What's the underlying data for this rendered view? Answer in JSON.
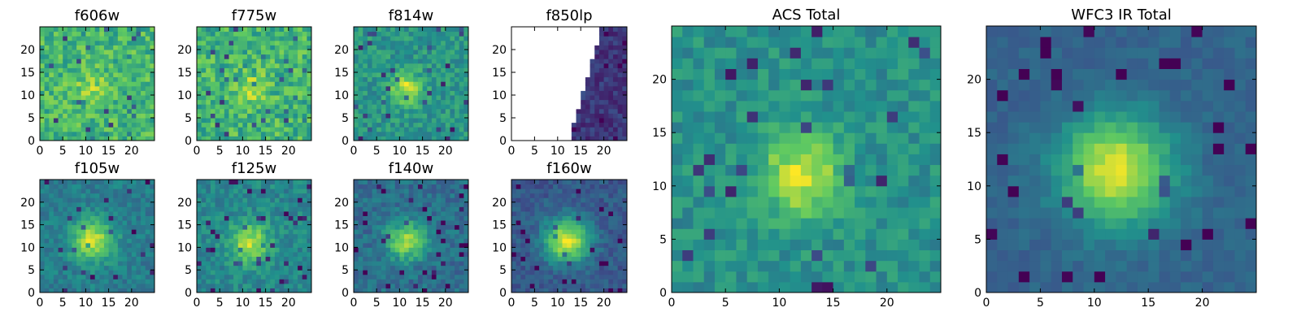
{
  "figure": {
    "description_free": true,
    "colormap": [
      "#440154",
      "#3b528b",
      "#21918c",
      "#5ec962",
      "#fde725"
    ],
    "missing_color": "#ffffff",
    "frame_color": "#000000"
  },
  "chart_data": [
    {
      "type": "heatmap",
      "title": "f606w",
      "grid_size": 25,
      "xlim": [
        0,
        25
      ],
      "ylim": [
        0,
        25
      ],
      "xticks": [
        0,
        5,
        10,
        15,
        20
      ],
      "yticks": [
        0,
        5,
        10,
        15,
        20
      ],
      "peak": {
        "x": 11.5,
        "y": 11.5
      },
      "peak_value": 0.82,
      "background_value": 0.66,
      "sigma": 2.6,
      "noise": 0.16,
      "seed": 11
    },
    {
      "type": "heatmap",
      "title": "f775w",
      "grid_size": 25,
      "xlim": [
        0,
        25
      ],
      "ylim": [
        0,
        25
      ],
      "xticks": [
        0,
        5,
        10,
        15,
        20
      ],
      "yticks": [
        0,
        5,
        10,
        15,
        20
      ],
      "peak": {
        "x": 11.5,
        "y": 11.5
      },
      "peak_value": 0.84,
      "background_value": 0.65,
      "sigma": 2.8,
      "noise": 0.17,
      "seed": 23
    },
    {
      "type": "heatmap",
      "title": "f814w",
      "grid_size": 25,
      "xlim": [
        0,
        25
      ],
      "ylim": [
        0,
        25
      ],
      "xticks": [
        0,
        5,
        10,
        15,
        20
      ],
      "yticks": [
        0,
        5,
        10,
        15,
        20
      ],
      "peak": {
        "x": 11.5,
        "y": 11.5
      },
      "peak_value": 0.92,
      "background_value": 0.52,
      "sigma": 2.4,
      "noise": 0.12,
      "seed": 37
    },
    {
      "type": "heatmap",
      "title": "f850lp",
      "grid_size": 25,
      "xlim": [
        0,
        25
      ],
      "ylim": [
        0,
        25
      ],
      "xticks": [
        0,
        5,
        10,
        15,
        20
      ],
      "yticks": [
        0,
        5,
        10,
        15,
        20
      ],
      "peak": {
        "x": 11.5,
        "y": 11.5
      },
      "peak_value": 0.3,
      "background_value": 0.16,
      "sigma": 2.5,
      "noise": 0.08,
      "seed": 41,
      "coverage_edge": {
        "x_at_bottom": 12.5,
        "x_at_top": 19.5
      }
    },
    {
      "type": "heatmap",
      "title": "f105w",
      "grid_size": 25,
      "xlim": [
        0,
        25
      ],
      "ylim": [
        0,
        25
      ],
      "xticks": [
        0,
        5,
        10,
        15,
        20
      ],
      "yticks": [
        0,
        5,
        10,
        15,
        20
      ],
      "peak": {
        "x": 11.5,
        "y": 11.5
      },
      "peak_value": 0.92,
      "background_value": 0.42,
      "sigma": 3.2,
      "noise": 0.09,
      "seed": 53
    },
    {
      "type": "heatmap",
      "title": "f125w",
      "grid_size": 25,
      "xlim": [
        0,
        25
      ],
      "ylim": [
        0,
        25
      ],
      "xticks": [
        0,
        5,
        10,
        15,
        20
      ],
      "yticks": [
        0,
        5,
        10,
        15,
        20
      ],
      "peak": {
        "x": 11.5,
        "y": 11.0
      },
      "peak_value": 0.9,
      "background_value": 0.46,
      "sigma": 3.0,
      "noise": 0.1,
      "seed": 67
    },
    {
      "type": "heatmap",
      "title": "f140w",
      "grid_size": 25,
      "xlim": [
        0,
        25
      ],
      "ylim": [
        0,
        25
      ],
      "xticks": [
        0,
        5,
        10,
        15,
        20
      ],
      "yticks": [
        0,
        5,
        10,
        15,
        20
      ],
      "peak": {
        "x": 11.5,
        "y": 11.5
      },
      "peak_value": 0.85,
      "background_value": 0.36,
      "sigma": 3.0,
      "noise": 0.1,
      "seed": 71
    },
    {
      "type": "heatmap",
      "title": "f160w",
      "grid_size": 25,
      "xlim": [
        0,
        25
      ],
      "ylim": [
        0,
        25
      ],
      "xticks": [
        0,
        5,
        10,
        15,
        20
      ],
      "yticks": [
        0,
        5,
        10,
        15,
        20
      ],
      "peak": {
        "x": 12.0,
        "y": 11.5
      },
      "peak_value": 0.95,
      "background_value": 0.28,
      "sigma": 3.4,
      "noise": 0.08,
      "seed": 83
    },
    {
      "type": "heatmap",
      "title": "ACS Total",
      "grid_size": 25,
      "xlim": [
        0,
        25
      ],
      "ylim": [
        0,
        25
      ],
      "xticks": [
        0,
        5,
        10,
        15,
        20
      ],
      "yticks": [
        0,
        5,
        10,
        15,
        20
      ],
      "peak": {
        "x": 12.0,
        "y": 11.0
      },
      "peak_value": 0.95,
      "background_value": 0.5,
      "sigma": 2.6,
      "noise": 0.1,
      "seed": 97
    },
    {
      "type": "heatmap",
      "title": "WFC3 IR Total",
      "grid_size": 25,
      "xlim": [
        0,
        25
      ],
      "ylim": [
        0,
        25
      ],
      "xticks": [
        0,
        5,
        10,
        15,
        20
      ],
      "yticks": [
        0,
        5,
        10,
        15,
        20
      ],
      "peak": {
        "x": 12.0,
        "y": 11.5
      },
      "peak_value": 0.95,
      "background_value": 0.32,
      "sigma": 3.6,
      "noise": 0.05,
      "seed": 109
    }
  ]
}
